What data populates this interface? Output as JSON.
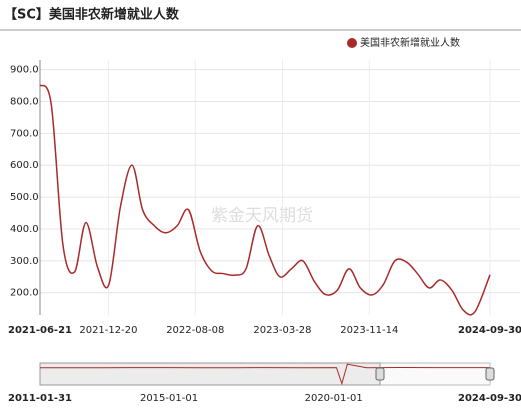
{
  "chart_data": [
    {
      "type": "line",
      "title": "【SC】美国非农新增就业人数",
      "watermark": "紫金天风期货",
      "legend": "top-right",
      "grid": true,
      "x": [
        "2021-06-21",
        "2021-07-21",
        "2021-08-21",
        "2021-09-21",
        "2021-10-21",
        "2021-11-21",
        "2021-12-21",
        "2022-01-21",
        "2022-02-21",
        "2022-03-21",
        "2022-04-21",
        "2022-05-21",
        "2022-06-21",
        "2022-07-21",
        "2022-08-21",
        "2022-09-21",
        "2022-10-21",
        "2022-11-21",
        "2022-12-21",
        "2023-01-21",
        "2023-02-21",
        "2023-03-21",
        "2023-04-21",
        "2023-05-21",
        "2023-06-21",
        "2023-07-21",
        "2023-08-21",
        "2023-09-21",
        "2023-10-21",
        "2023-11-21",
        "2023-12-21",
        "2024-01-21",
        "2024-02-21",
        "2024-03-21",
        "2024-04-21",
        "2024-05-21",
        "2024-06-21",
        "2024-07-21",
        "2024-08-21",
        "2024-09-30"
      ],
      "series": [
        {
          "name": "美国非农新增就业人数",
          "color": "#a82a2a",
          "values": [
            852,
            790,
            350,
            265,
            420,
            280,
            225,
            470,
            600,
            460,
            410,
            388,
            410,
            460,
            330,
            268,
            260,
            255,
            275,
            410,
            315,
            250,
            275,
            300,
            235,
            194,
            208,
            275,
            215,
            193,
            225,
            300,
            296,
            260,
            215,
            240,
            207,
            145,
            140,
            256
          ]
        }
      ],
      "xlim": [
        "2021-06-21",
        "2024-09-30"
      ],
      "xticks": [
        "2021-06-21",
        "2021-12-20",
        "2022-08-08",
        "2023-03-28",
        "2023-11-14",
        "2024-09-30"
      ],
      "ylim": [
        130,
        930
      ],
      "yticks": [
        {
          "value": 200,
          "label": "200.0"
        },
        {
          "value": 300,
          "label": "300.0"
        },
        {
          "value": 400,
          "label": "400.0"
        },
        {
          "value": 500,
          "label": "500.0"
        },
        {
          "value": 600,
          "label": "600.0"
        },
        {
          "value": 700,
          "label": "700.0"
        },
        {
          "value": 800,
          "label": "800.0"
        },
        {
          "value": 900,
          "label": "900.0"
        }
      ]
    },
    {
      "type": "navigator",
      "x": [
        "2011-01-31",
        "2012-01-01",
        "2013-01-01",
        "2014-01-01",
        "2015-01-01",
        "2016-01-01",
        "2017-01-01",
        "2018-01-01",
        "2019-01-01",
        "2020-02-01",
        "2020-04-01",
        "2020-06-01",
        "2021-01-01",
        "2022-01-01",
        "2023-01-01",
        "2024-01-01",
        "2024-09-30"
      ],
      "values": [
        70,
        200,
        200,
        250,
        230,
        200,
        200,
        250,
        180,
        275,
        -20500,
        4800,
        200,
        500,
        300,
        250,
        254
      ],
      "color": "#a82a2a",
      "xlim": [
        "2011-01-31",
        "2024-09-30"
      ],
      "ylim": [
        -21000,
        5000
      ],
      "xticks": [
        "2011-01-31",
        "2015-01-01",
        "2020-01-01",
        "2024-09-30"
      ]
    }
  ]
}
